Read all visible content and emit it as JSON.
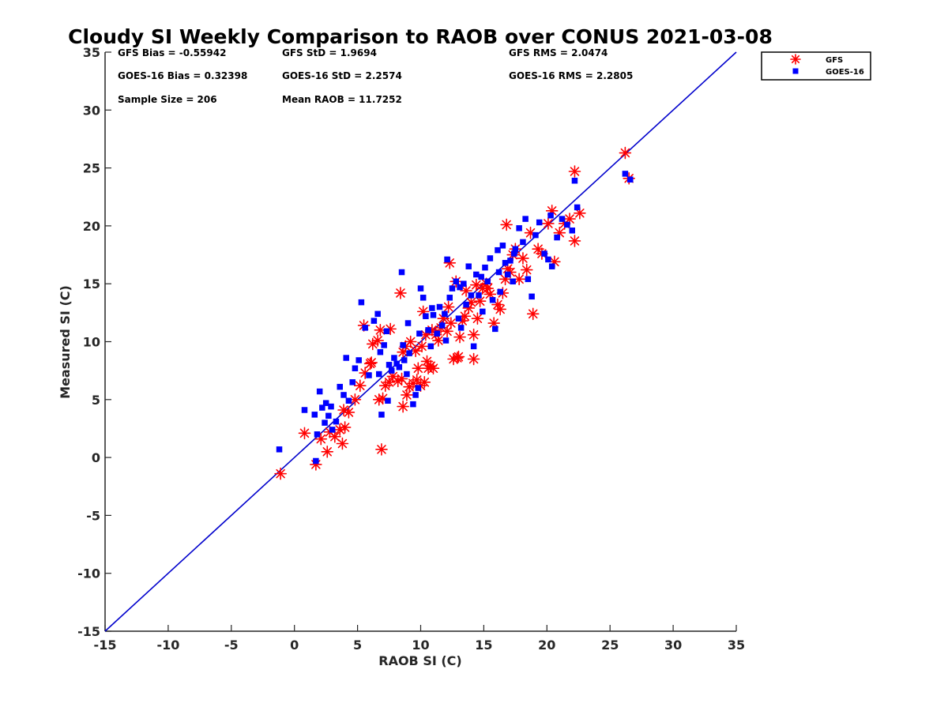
{
  "chart_data": {
    "type": "scatter",
    "title": "Cloudy SI Weekly Comparison to RAOB over CONUS 2021-03-08",
    "xlabel": "RAOB SI (C)",
    "ylabel": "Measured SI (C)",
    "xlim": [
      -15,
      35
    ],
    "ylim": [
      -15,
      35
    ],
    "xticks": [
      -15,
      -10,
      -5,
      0,
      5,
      10,
      15,
      20,
      25,
      30,
      35
    ],
    "yticks": [
      -15,
      -10,
      -5,
      0,
      5,
      10,
      15,
      20,
      25,
      30,
      35
    ],
    "grid": false,
    "legend_position": "outside-top-right",
    "reference_line": {
      "type": "one-to-one",
      "from": [
        -15,
        -15
      ],
      "to": [
        35,
        35
      ],
      "color": "#0000cc"
    },
    "stats": {
      "gfs_bias": "GFS Bias = -0.55942",
      "gfs_std": "GFS StD = 1.9694",
      "gfs_rms": "GFS RMS = 2.0474",
      "goes_bias": "GOES-16 Bias = 0.32398",
      "goes_std": "GOES-16 StD = 2.2574",
      "goes_rms": "GOES-16 RMS = 2.2805",
      "sample_size": "Sample Size = 206",
      "mean_raob": "Mean RAOB = 11.7252"
    },
    "series": [
      {
        "name": "GFS",
        "marker": "asterisk",
        "color": "#ff0000",
        "points": [
          [
            -1.1,
            -1.4
          ],
          [
            1.7,
            -0.6
          ],
          [
            2.6,
            0.5
          ],
          [
            2.1,
            1.6
          ],
          [
            3.8,
            1.2
          ],
          [
            0.8,
            2.1
          ],
          [
            2.8,
            2.2
          ],
          [
            3.2,
            1.8
          ],
          [
            3.6,
            2.4
          ],
          [
            4.0,
            2.6
          ],
          [
            3.9,
            4.1
          ],
          [
            4.3,
            3.9
          ],
          [
            4.8,
            5.0
          ],
          [
            5.2,
            6.2
          ],
          [
            5.6,
            7.3
          ],
          [
            6.0,
            8.1
          ],
          [
            5.5,
            11.4
          ],
          [
            6.2,
            9.8
          ],
          [
            6.6,
            10.1
          ],
          [
            6.8,
            11.0
          ],
          [
            6.9,
            0.7
          ],
          [
            7.0,
            5.1
          ],
          [
            6.7,
            5.0
          ],
          [
            7.2,
            6.2
          ],
          [
            7.5,
            6.5
          ],
          [
            7.8,
            7.0
          ],
          [
            8.2,
            6.6
          ],
          [
            8.5,
            6.8
          ],
          [
            8.6,
            4.4
          ],
          [
            8.4,
            14.2
          ],
          [
            8.9,
            5.4
          ],
          [
            9.1,
            6.1
          ],
          [
            9.4,
            6.4
          ],
          [
            9.7,
            6.7
          ],
          [
            9.8,
            7.7
          ],
          [
            10.0,
            6.2
          ],
          [
            10.3,
            6.5
          ],
          [
            10.5,
            8.3
          ],
          [
            10.6,
            7.7
          ],
          [
            10.8,
            7.9
          ],
          [
            8.6,
            9.1
          ],
          [
            8.8,
            9.6
          ],
          [
            9.2,
            10.0
          ],
          [
            9.6,
            9.2
          ],
          [
            10.1,
            9.6
          ],
          [
            10.4,
            10.6
          ],
          [
            10.9,
            11.0
          ],
          [
            11.2,
            10.6
          ],
          [
            11.4,
            10.1
          ],
          [
            11.6,
            11.2
          ],
          [
            11.8,
            12.0
          ],
          [
            12.1,
            10.9
          ],
          [
            12.4,
            11.6
          ],
          [
            12.6,
            8.5
          ],
          [
            12.9,
            8.6
          ],
          [
            13.1,
            10.4
          ],
          [
            13.3,
            11.8
          ],
          [
            13.5,
            12.2
          ],
          [
            13.8,
            12.9
          ],
          [
            14.0,
            13.4
          ],
          [
            14.2,
            10.6
          ],
          [
            14.5,
            12.0
          ],
          [
            14.7,
            13.5
          ],
          [
            14.9,
            14.6
          ],
          [
            15.2,
            15.0
          ],
          [
            15.5,
            14.1
          ],
          [
            15.8,
            11.6
          ],
          [
            16.1,
            13.2
          ],
          [
            16.3,
            12.8
          ],
          [
            16.5,
            14.2
          ],
          [
            16.7,
            15.4
          ],
          [
            16.9,
            16.3
          ],
          [
            17.1,
            16.0
          ],
          [
            17.3,
            17.5
          ],
          [
            17.5,
            18.0
          ],
          [
            17.8,
            15.4
          ],
          [
            18.1,
            17.2
          ],
          [
            18.4,
            16.2
          ],
          [
            18.7,
            19.4
          ],
          [
            18.9,
            12.4
          ],
          [
            19.3,
            18.0
          ],
          [
            19.6,
            17.6
          ],
          [
            20.1,
            20.2
          ],
          [
            20.4,
            21.3
          ],
          [
            20.6,
            16.9
          ],
          [
            21.0,
            19.4
          ],
          [
            21.4,
            20.2
          ],
          [
            21.8,
            20.6
          ],
          [
            22.2,
            18.7
          ],
          [
            22.2,
            24.7
          ],
          [
            22.6,
            21.1
          ],
          [
            26.2,
            26.3
          ],
          [
            26.5,
            24.1
          ],
          [
            12.3,
            16.8
          ],
          [
            14.2,
            8.5
          ],
          [
            13.0,
            8.7
          ],
          [
            11.0,
            7.7
          ],
          [
            7.6,
            11.1
          ],
          [
            6.1,
            8.2
          ],
          [
            12.8,
            15.2
          ],
          [
            16.8,
            20.1
          ],
          [
            10.2,
            12.6
          ],
          [
            15.3,
            14.6
          ],
          [
            14.4,
            14.9
          ],
          [
            12.2,
            13.0
          ],
          [
            13.6,
            14.4
          ]
        ]
      },
      {
        "name": "GOES-16",
        "marker": "square",
        "color": "#0000ff",
        "points": [
          [
            -1.2,
            0.7
          ],
          [
            1.7,
            -0.3
          ],
          [
            0.8,
            4.1
          ],
          [
            1.6,
            3.7
          ],
          [
            1.8,
            2.0
          ],
          [
            2.0,
            5.7
          ],
          [
            2.2,
            4.3
          ],
          [
            2.4,
            3.0
          ],
          [
            2.5,
            4.7
          ],
          [
            2.7,
            3.6
          ],
          [
            2.9,
            4.4
          ],
          [
            3.3,
            3.1
          ],
          [
            3.6,
            6.1
          ],
          [
            3.9,
            5.4
          ],
          [
            4.1,
            8.6
          ],
          [
            4.3,
            4.9
          ],
          [
            4.8,
            7.7
          ],
          [
            5.1,
            8.4
          ],
          [
            5.3,
            13.4
          ],
          [
            5.6,
            11.2
          ],
          [
            5.9,
            7.1
          ],
          [
            6.3,
            11.8
          ],
          [
            6.6,
            12.4
          ],
          [
            6.8,
            9.1
          ],
          [
            6.9,
            3.7
          ],
          [
            7.1,
            9.7
          ],
          [
            7.3,
            10.9
          ],
          [
            7.5,
            8.0
          ],
          [
            7.7,
            7.5
          ],
          [
            7.9,
            8.6
          ],
          [
            8.1,
            8.1
          ],
          [
            8.3,
            7.8
          ],
          [
            8.5,
            16.0
          ],
          [
            8.7,
            8.4
          ],
          [
            8.9,
            7.2
          ],
          [
            9.1,
            9.0
          ],
          [
            9.4,
            4.6
          ],
          [
            9.6,
            5.4
          ],
          [
            9.8,
            6.0
          ],
          [
            10.0,
            14.6
          ],
          [
            10.2,
            13.8
          ],
          [
            10.4,
            12.2
          ],
          [
            10.6,
            11.0
          ],
          [
            10.8,
            9.6
          ],
          [
            11.0,
            12.3
          ],
          [
            11.3,
            10.7
          ],
          [
            11.5,
            13.0
          ],
          [
            11.7,
            11.4
          ],
          [
            12.0,
            10.1
          ],
          [
            12.3,
            13.8
          ],
          [
            12.5,
            14.6
          ],
          [
            12.8,
            15.2
          ],
          [
            13.0,
            12.0
          ],
          [
            13.2,
            11.2
          ],
          [
            13.4,
            15.0
          ],
          [
            13.6,
            13.2
          ],
          [
            13.8,
            16.5
          ],
          [
            14.0,
            14.0
          ],
          [
            14.2,
            9.6
          ],
          [
            14.4,
            15.8
          ],
          [
            14.6,
            14.0
          ],
          [
            14.9,
            12.6
          ],
          [
            15.1,
            16.4
          ],
          [
            15.3,
            15.2
          ],
          [
            15.5,
            17.2
          ],
          [
            15.7,
            13.6
          ],
          [
            15.9,
            11.1
          ],
          [
            16.1,
            17.9
          ],
          [
            16.3,
            14.3
          ],
          [
            16.5,
            18.3
          ],
          [
            16.7,
            16.8
          ],
          [
            16.9,
            15.8
          ],
          [
            17.1,
            17.0
          ],
          [
            17.3,
            15.2
          ],
          [
            17.5,
            18.0
          ],
          [
            17.8,
            19.8
          ],
          [
            18.1,
            18.6
          ],
          [
            18.3,
            20.6
          ],
          [
            18.5,
            15.4
          ],
          [
            18.8,
            13.9
          ],
          [
            19.1,
            19.2
          ],
          [
            19.4,
            20.3
          ],
          [
            19.8,
            17.6
          ],
          [
            20.1,
            17.1
          ],
          [
            20.4,
            16.5
          ],
          [
            20.8,
            19.0
          ],
          [
            21.2,
            20.6
          ],
          [
            21.6,
            20.1
          ],
          [
            22.0,
            19.6
          ],
          [
            22.2,
            23.9
          ],
          [
            22.4,
            21.6
          ],
          [
            26.2,
            24.5
          ],
          [
            26.6,
            24.0
          ],
          [
            7.4,
            4.9
          ],
          [
            6.7,
            7.2
          ],
          [
            8.6,
            9.7
          ],
          [
            9.9,
            10.7
          ],
          [
            10.9,
            12.9
          ],
          [
            12.1,
            17.1
          ],
          [
            14.8,
            15.6
          ],
          [
            16.2,
            16.0
          ],
          [
            3.0,
            2.4
          ],
          [
            4.6,
            6.5
          ],
          [
            9.0,
            11.6
          ],
          [
            11.9,
            12.4
          ],
          [
            13.1,
            14.7
          ],
          [
            17.4,
            17.6
          ],
          [
            20.3,
            20.9
          ]
        ]
      }
    ]
  },
  "legend": {
    "items": [
      {
        "label": "GFS",
        "color": "#ff0000",
        "marker": "asterisk"
      },
      {
        "label": "GOES-16",
        "color": "#0000ff",
        "marker": "square"
      }
    ]
  }
}
